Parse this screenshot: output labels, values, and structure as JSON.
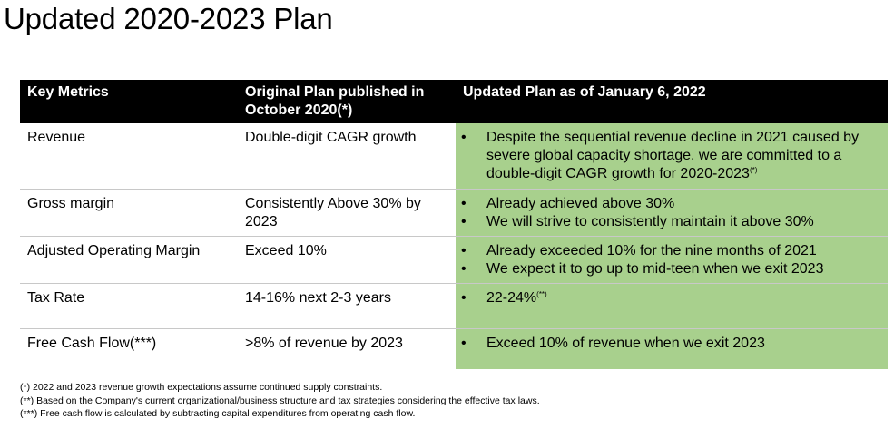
{
  "title": "Updated 2020-2023 Plan",
  "table": {
    "headers": [
      "Key Metrics",
      "Original Plan published in October 2020(*)",
      "Updated Plan as of January 6, 2022"
    ],
    "rows": [
      {
        "metric": "Revenue",
        "original": "Double-digit CAGR growth",
        "updated": [
          {
            "text": "Despite the sequential  revenue decline in 2021 caused by severe global capacity shortage, we are  committed to a double-digit CAGR growth for 2020-2023",
            "note": "(*)"
          }
        ]
      },
      {
        "metric": "Gross margin",
        "original": "Consistently Above 30% by 2023",
        "updated": [
          {
            "text": "Already achieved above 30%",
            "note": ""
          },
          {
            "text": "We will strive to consistently maintain it above 30%",
            "note": ""
          }
        ]
      },
      {
        "metric": "Adjusted Operating Margin",
        "original": "Exceed 10%",
        "updated": [
          {
            "text": "Already exceeded 10% for the nine months of 2021",
            "note": ""
          },
          {
            "text": "We expect it to go up to mid-teen when we exit 2023",
            "note": ""
          }
        ]
      },
      {
        "metric": "Tax Rate",
        "original": "14-16% next 2-3 years",
        "updated": [
          {
            "text": "22-24%",
            "note": "(**)"
          }
        ]
      },
      {
        "metric": "Free Cash Flow(***)",
        "original": ">8% of revenue by 2023",
        "updated": [
          {
            "text": "Exceed 10% of revenue when we exit 2023",
            "note": ""
          }
        ]
      }
    ],
    "bullet": "•"
  },
  "footnotes": [
    "(*)   2022 and 2023 revenue growth expectations assume continued supply constraints.",
    "(**) Based on the Company's current organizational/business structure and tax strategies considering the effective tax laws.",
    "(***)  Free cash flow is calculated by subtracting capital expenditures from operating cash flow."
  ],
  "colors": {
    "header_bg": "#000000",
    "header_text": "#ffffff",
    "updated_bg": "#a8d08d"
  }
}
